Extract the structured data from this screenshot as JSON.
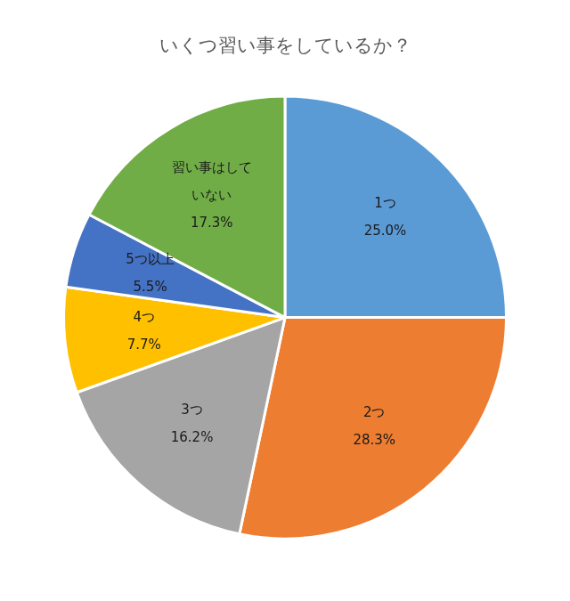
{
  "chart_data": {
    "type": "pie",
    "title": "いくつ習い事をしているか？",
    "categories": [
      "1つ",
      "2つ",
      "3つ",
      "4つ",
      "5つ以上",
      "習い事はしていない"
    ],
    "values": [
      25.0,
      28.3,
      16.2,
      7.7,
      5.5,
      17.3
    ],
    "value_labels": [
      "25.0%",
      "28.3%",
      "16.2%",
      "7.7%",
      "5.5%",
      "17.3%"
    ],
    "colors": [
      "#5B9BD5",
      "#ED7D31",
      "#A5A5A5",
      "#FFC000",
      "#4472C4",
      "#70AD47"
    ],
    "data_labels": true
  }
}
